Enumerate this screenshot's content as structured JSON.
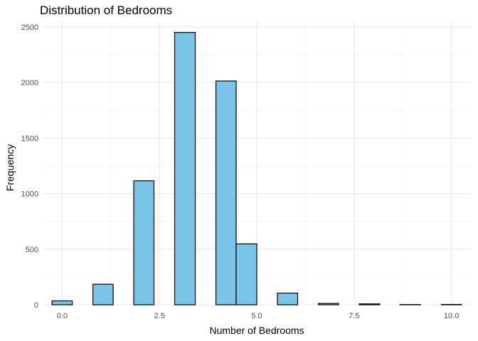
{
  "chart_data": {
    "type": "bar",
    "title": "Distribution of Bedrooms",
    "xlabel": "Number of Bedrooms",
    "ylabel": "Frequency",
    "xlim": [
      -0.5,
      10.5
    ],
    "ylim": [
      0,
      2550
    ],
    "x_ticks": [
      "0.0",
      "2.5",
      "5.0",
      "7.5",
      "10.0"
    ],
    "y_ticks": [
      "0",
      "500",
      "1000",
      "1500",
      "2000",
      "2500"
    ],
    "grid": true,
    "bar_fill": "#7AC5E7",
    "bar_stroke": "#000000",
    "bins": [
      {
        "x0": -0.26,
        "x1": 0.26,
        "count": 35
      },
      {
        "x0": 0.79,
        "x1": 1.31,
        "count": 185
      },
      {
        "x0": 1.84,
        "x1": 2.36,
        "count": 1115
      },
      {
        "x0": 2.89,
        "x1": 3.42,
        "count": 2450
      },
      {
        "x0": 3.95,
        "x1": 4.47,
        "count": 2013
      },
      {
        "x0": 4.47,
        "x1": 5.0,
        "count": 548
      },
      {
        "x0": 5.53,
        "x1": 6.05,
        "count": 105
      },
      {
        "x0": 6.58,
        "x1": 7.1,
        "count": 12
      },
      {
        "x0": 7.63,
        "x1": 8.16,
        "count": 8
      },
      {
        "x0": 8.68,
        "x1": 9.21,
        "count": 2
      },
      {
        "x0": 9.74,
        "x1": 10.26,
        "count": 3
      }
    ]
  }
}
